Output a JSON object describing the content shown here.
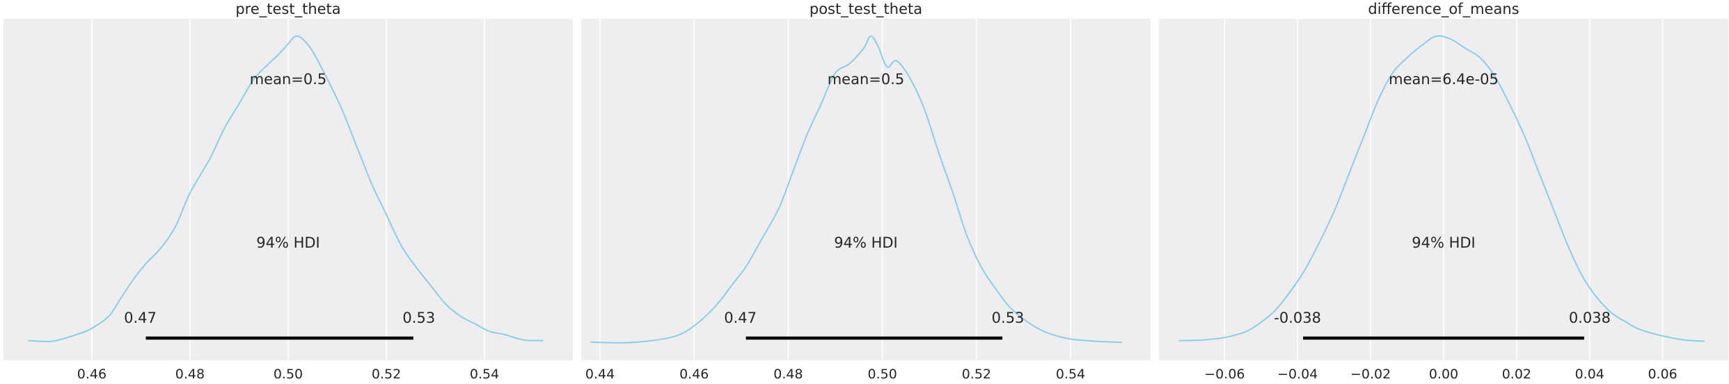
{
  "chart_data": [
    {
      "type": "area",
      "title": "pre_test_theta",
      "xlim": [
        0.442,
        0.558
      ],
      "xticks": [
        0.46,
        0.48,
        0.5,
        0.52,
        0.54
      ],
      "tick_labels": [
        "0.46",
        "0.48",
        "0.50",
        "0.52",
        "0.54"
      ],
      "grid": true,
      "mean_label": "mean=0.5",
      "hdi_label": "94% HDI",
      "hdi": [
        0.471,
        0.5255
      ],
      "hdi_low_label": "0.47",
      "hdi_high_label": "0.53",
      "line_color": "#87ceeb",
      "density": {
        "x": [
          0.447,
          0.452,
          0.457,
          0.46,
          0.4635,
          0.466,
          0.4685,
          0.471,
          0.474,
          0.477,
          0.48,
          0.484,
          0.487,
          0.49,
          0.493,
          0.496,
          0.498,
          0.5,
          0.5015,
          0.503,
          0.505,
          0.508,
          0.511,
          0.514,
          0.517,
          0.52,
          0.523,
          0.526,
          0.529,
          0.532,
          0.535,
          0.538,
          0.541,
          0.544,
          0.548,
          0.552
        ],
        "y": [
          0.01,
          0.008,
          0.03,
          0.05,
          0.09,
          0.15,
          0.21,
          0.26,
          0.31,
          0.38,
          0.49,
          0.6,
          0.7,
          0.78,
          0.86,
          0.91,
          0.94,
          0.975,
          1.0,
          0.99,
          0.95,
          0.86,
          0.76,
          0.64,
          0.52,
          0.42,
          0.32,
          0.25,
          0.19,
          0.13,
          0.09,
          0.065,
          0.04,
          0.03,
          0.012,
          0.01
        ]
      }
    },
    {
      "type": "area",
      "title": "post_test_theta",
      "xlim": [
        0.436,
        0.557
      ],
      "xticks": [
        0.44,
        0.46,
        0.48,
        0.5,
        0.52,
        0.54
      ],
      "tick_labels": [
        "0.44",
        "0.46",
        "0.48",
        "0.50",
        "0.52",
        "0.54"
      ],
      "grid": true,
      "mean_label": "mean=0.5",
      "hdi_label": "94% HDI",
      "hdi": [
        0.471,
        0.5255
      ],
      "hdi_low_label": "0.47",
      "hdi_high_label": "0.53",
      "line_color": "#87ceeb",
      "density": {
        "x": [
          0.438,
          0.445,
          0.452,
          0.457,
          0.461,
          0.465,
          0.468,
          0.471,
          0.474,
          0.478,
          0.481,
          0.484,
          0.487,
          0.49,
          0.493,
          0.496,
          0.4975,
          0.499,
          0.501,
          0.503,
          0.506,
          0.509,
          0.512,
          0.515,
          0.518,
          0.521,
          0.524,
          0.527,
          0.53,
          0.533,
          0.536,
          0.54,
          0.545,
          0.551
        ],
        "y": [
          0.005,
          0.003,
          0.012,
          0.03,
          0.07,
          0.13,
          0.19,
          0.25,
          0.33,
          0.44,
          0.56,
          0.68,
          0.78,
          0.88,
          0.91,
          0.96,
          1.0,
          0.97,
          0.9,
          0.92,
          0.86,
          0.76,
          0.62,
          0.49,
          0.35,
          0.25,
          0.18,
          0.12,
          0.08,
          0.05,
          0.03,
          0.015,
          0.008,
          0.004
        ]
      }
    },
    {
      "type": "area",
      "title": "difference_of_means",
      "xlim": [
        -0.078,
        0.078
      ],
      "xticks": [
        -0.06,
        -0.04,
        -0.02,
        0.0,
        0.02,
        0.04,
        0.06
      ],
      "tick_labels": [
        "−0.06",
        "−0.04",
        "−0.02",
        "0.00",
        "0.02",
        "0.04",
        "0.06"
      ],
      "grid": true,
      "mean_label": "mean=6.4e-05",
      "hdi_label": "94% HDI",
      "hdi": [
        -0.0385,
        0.0385
      ],
      "hdi_low_label": "-0.038",
      "hdi_high_label": "0.038",
      "line_color": "#87ceeb",
      "density": {
        "x": [
          -0.0725,
          -0.066,
          -0.06,
          -0.054,
          -0.05,
          -0.046,
          -0.042,
          -0.038,
          -0.034,
          -0.03,
          -0.026,
          -0.022,
          -0.018,
          -0.014,
          -0.01,
          -0.006,
          -0.002,
          0.002,
          0.006,
          0.01,
          0.014,
          0.018,
          0.022,
          0.026,
          0.03,
          0.034,
          0.038,
          0.042,
          0.046,
          0.05,
          0.054,
          0.06,
          0.066,
          0.0715
        ],
        "y": [
          0.01,
          0.012,
          0.02,
          0.04,
          0.07,
          0.11,
          0.17,
          0.24,
          0.33,
          0.43,
          0.55,
          0.67,
          0.79,
          0.88,
          0.93,
          0.97,
          1.0,
          0.99,
          0.96,
          0.93,
          0.87,
          0.78,
          0.68,
          0.56,
          0.44,
          0.32,
          0.22,
          0.15,
          0.1,
          0.07,
          0.045,
          0.025,
          0.012,
          0.008
        ]
      }
    }
  ]
}
